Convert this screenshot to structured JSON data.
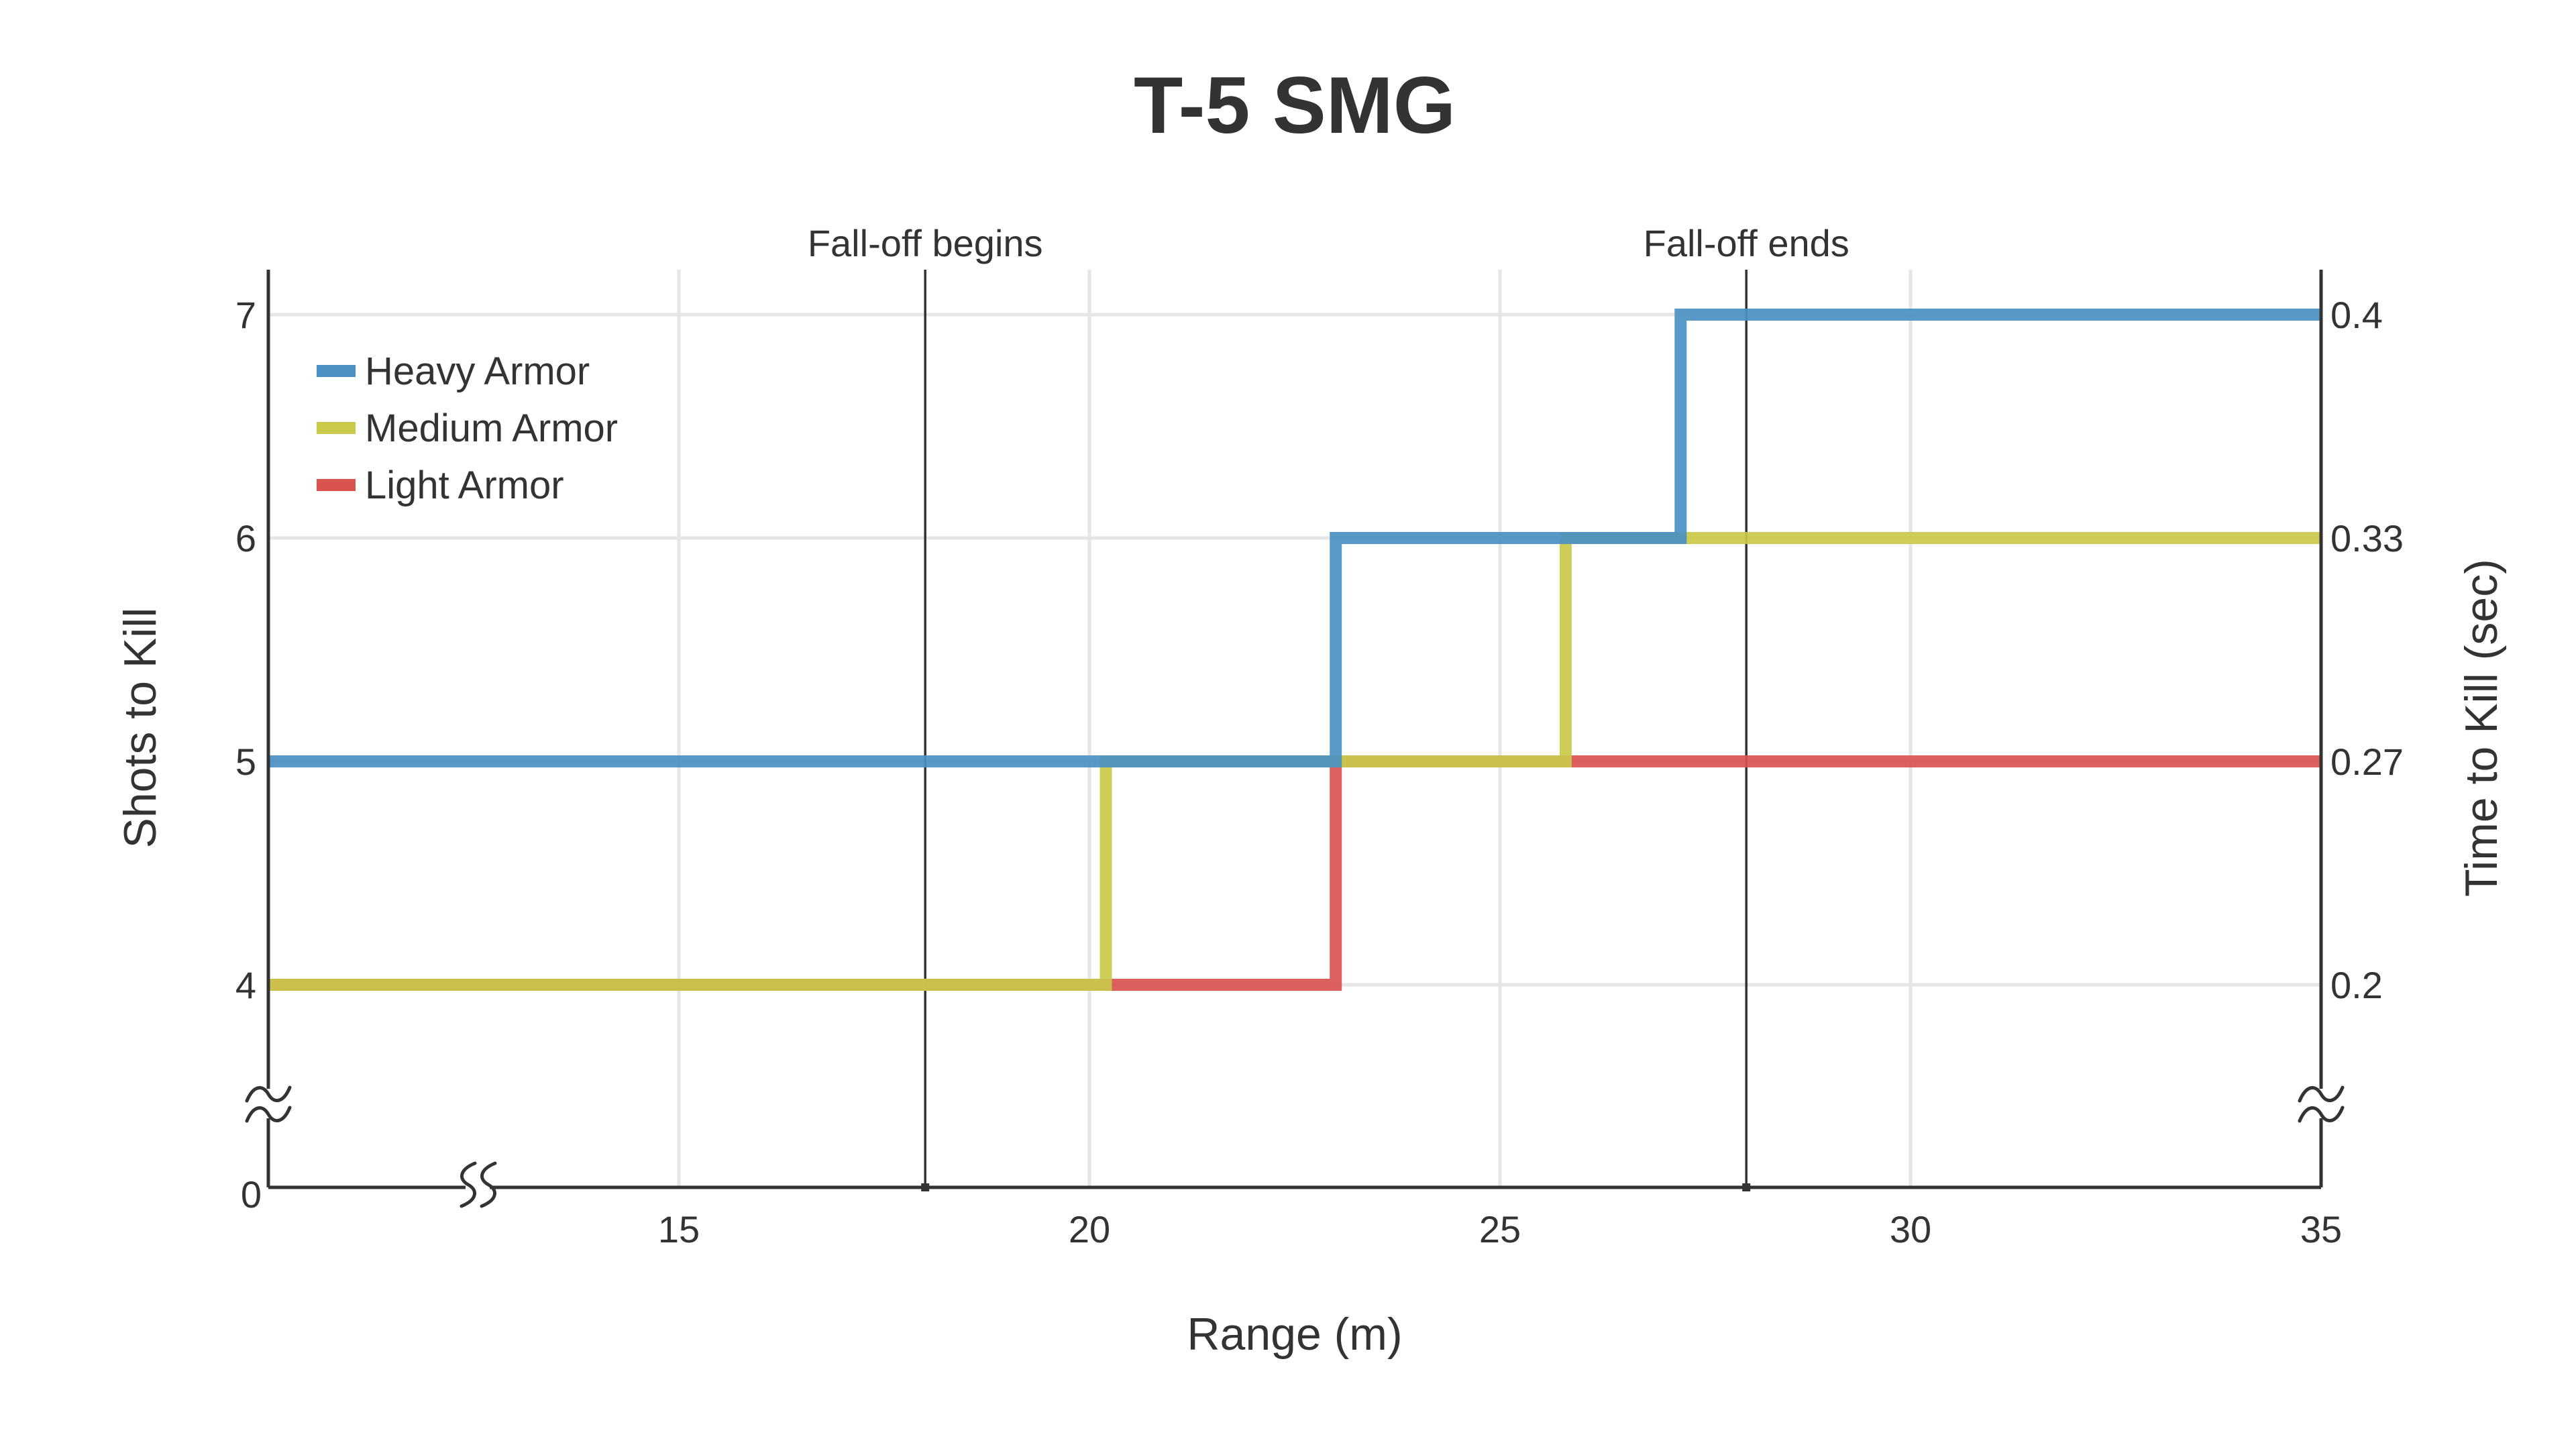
{
  "chart_data": {
    "type": "line",
    "title": "T-5 SMG",
    "xlabel": "Range (m)",
    "ylabel": "Shots to Kill",
    "y2label": "Time to Kill (sec)",
    "xlim": [
      10,
      35
    ],
    "ylim": [
      3,
      7.2
    ],
    "x_ticks": [
      "15",
      "20",
      "25",
      "30",
      "35"
    ],
    "y_ticks": [
      {
        "value": 4,
        "label": "4"
      },
      {
        "value": 5,
        "label": "5"
      },
      {
        "value": 6,
        "label": "6"
      },
      {
        "value": 7,
        "label": "7"
      }
    ],
    "y_zero_label": "0",
    "y2_ticks": [
      {
        "value": 4,
        "label": "0.2"
      },
      {
        "value": 5,
        "label": "0.27"
      },
      {
        "value": 6,
        "label": "0.33"
      },
      {
        "value": 7,
        "label": "0.4"
      }
    ],
    "axis_breaks": [
      "x",
      "y",
      "y2"
    ],
    "grid": true,
    "legend_position": "top-left",
    "annotations": [
      {
        "x": 18,
        "label": "Fall-off begins"
      },
      {
        "x": 28,
        "label": "Fall-off ends"
      }
    ],
    "series": [
      {
        "name": "Light Armor",
        "color": "#d9534f",
        "step": "hv",
        "x": [
          10,
          20.2,
          23,
          25.8,
          35
        ],
        "y": [
          4,
          4,
          5,
          5,
          5
        ]
      },
      {
        "name": "Medium Armor",
        "color": "#c9c94a",
        "step": "hv",
        "x": [
          10,
          20.2,
          25.8,
          35
        ],
        "y": [
          4,
          5,
          6,
          6
        ]
      },
      {
        "name": "Heavy Armor",
        "color": "#4a90c2",
        "step": "hv",
        "x": [
          10,
          23,
          27.2,
          35
        ],
        "y": [
          5,
          6,
          7,
          7
        ]
      }
    ],
    "legend_order": [
      "Heavy Armor",
      "Medium Armor",
      "Light Armor"
    ]
  }
}
